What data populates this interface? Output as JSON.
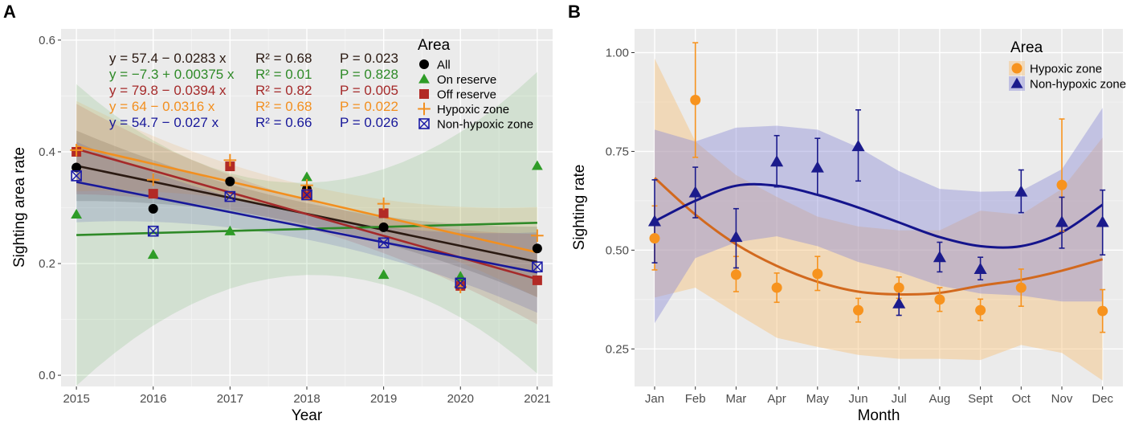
{
  "chart_data": [
    {
      "type": "scatter",
      "panel_label": "A",
      "xlabel": "Year",
      "ylabel": "Sighting area rate",
      "x": [
        2015,
        2016,
        2017,
        2018,
        2019,
        2020,
        2021
      ],
      "xlim": [
        2014.8,
        2021.2
      ],
      "ylim": [
        -0.02,
        0.62
      ],
      "yticks": [
        0.0,
        0.2,
        0.4,
        0.6
      ],
      "ytick_labels": [
        "0.0",
        "0.2",
        "0.4",
        "0.6"
      ],
      "legend_title": "Area",
      "series": [
        {
          "name": "All",
          "marker": "circle",
          "color": "#000000",
          "line_color": "#2b1a12",
          "values": [
            0.372,
            0.298,
            0.347,
            0.333,
            0.265,
            0.162,
            0.227
          ],
          "fit": [
            0.375,
            0.203
          ],
          "band": 0.035,
          "equation": [
            "y = 57.4 − 0.0283 x",
            "R² = 0.68",
            "P = 0.023"
          ]
        },
        {
          "name": "On reserve",
          "marker": "triangle",
          "color": "#2e9c27",
          "line_color": "#2f8a28",
          "values": [
            0.288,
            0.216,
            0.258,
            0.355,
            0.18,
            0.177,
            0.375
          ],
          "fit": [
            0.251,
            0.273
          ],
          "band": 0.15,
          "equation": [
            "y = −7.3 + 0.00375 x",
            "R² = 0.01",
            "P = 0.828"
          ]
        },
        {
          "name": "Off reserve",
          "marker": "square",
          "color": "#b22a25",
          "line_color": "#a52a2a",
          "values": [
            0.4,
            0.325,
            0.374,
            0.325,
            0.29,
            0.16,
            0.17
          ],
          "fit": [
            0.405,
            0.172
          ],
          "band": 0.045,
          "equation": [
            "y = 79.8 − 0.0394 x",
            "R² = 0.82",
            "P = 0.005"
          ]
        },
        {
          "name": "Hypoxic zone",
          "marker": "plus",
          "color": "#f28f1f",
          "line_color": "#f28f1f",
          "values": [
            0.403,
            0.35,
            0.385,
            0.34,
            0.307,
            0.158,
            0.25
          ],
          "fit": [
            0.41,
            0.22
          ],
          "band": 0.045,
          "equation": [
            "y = 64 − 0.0316 x",
            "R² = 0.68",
            "P = 0.022"
          ]
        },
        {
          "name": "Non-hypoxic zone",
          "marker": "boxcross",
          "color": "#1a1aa6",
          "line_color": "#18189a",
          "values": [
            0.357,
            0.258,
            0.32,
            0.323,
            0.237,
            0.165,
            0.194
          ],
          "fit": [
            0.346,
            0.184
          ],
          "band": 0.04,
          "equation": [
            "y = 54.7 − 0.027 x",
            "R² = 0.66",
            "P = 0.026"
          ]
        }
      ]
    },
    {
      "type": "scatter",
      "panel_label": "B",
      "xlabel": "Month",
      "ylabel": "Sighting rate",
      "categories": [
        "Jan",
        "Feb",
        "Mar",
        "Apr",
        "May",
        "Jun",
        "Jul",
        "Aug",
        "Sept",
        "Oct",
        "Nov",
        "Dec"
      ],
      "ylim": [
        0.155,
        1.06
      ],
      "yticks": [
        0.25,
        0.5,
        0.75,
        1.0
      ],
      "ytick_labels": [
        "0.25",
        "0.50",
        "0.75",
        "1.00"
      ],
      "legend_title": "Area",
      "series": [
        {
          "name": "Hypoxic zone",
          "marker": "circle",
          "color": "#f7931e",
          "line_color": "#d2691e",
          "values": [
            0.53,
            0.88,
            0.438,
            0.405,
            0.44,
            0.348,
            0.405,
            0.375,
            0.348,
            0.405,
            0.665,
            0.346
          ],
          "err_low": [
            0.45,
            0.735,
            0.395,
            0.368,
            0.398,
            0.318,
            0.378,
            0.345,
            0.322,
            0.358,
            0.548,
            0.292
          ],
          "err_high": [
            0.612,
            1.025,
            0.484,
            0.442,
            0.484,
            0.378,
            0.432,
            0.405,
            0.376,
            0.452,
            0.832,
            0.4
          ],
          "smooth": [
            0.683,
            0.59,
            0.515,
            0.46,
            0.42,
            0.395,
            0.388,
            0.392,
            0.41,
            0.425,
            0.448,
            0.477
          ],
          "band_low": [
            0.38,
            0.405,
            0.34,
            0.278,
            0.255,
            0.235,
            0.225,
            0.225,
            0.222,
            0.26,
            0.24,
            0.17
          ],
          "band_high": [
            0.985,
            0.775,
            0.69,
            0.635,
            0.585,
            0.56,
            0.55,
            0.55,
            0.6,
            0.59,
            0.655,
            0.785
          ]
        },
        {
          "name": "Non-hypoxic zone",
          "marker": "triangle",
          "color": "#1b1b8c",
          "line_color": "#14148c",
          "values": [
            0.573,
            0.646,
            0.533,
            0.724,
            0.709,
            0.763,
            0.365,
            0.482,
            0.452,
            0.648,
            0.571,
            0.571
          ],
          "err_low": [
            0.468,
            0.582,
            0.455,
            0.66,
            0.64,
            0.675,
            0.335,
            0.445,
            0.425,
            0.595,
            0.505,
            0.488
          ],
          "err_high": [
            0.678,
            0.71,
            0.605,
            0.79,
            0.783,
            0.855,
            0.395,
            0.52,
            0.482,
            0.703,
            0.634,
            0.652
          ],
          "smooth": [
            0.573,
            0.625,
            0.663,
            0.663,
            0.64,
            0.608,
            0.57,
            0.533,
            0.51,
            0.51,
            0.545,
            0.615
          ],
          "band_low": [
            0.315,
            0.48,
            0.52,
            0.535,
            0.51,
            0.47,
            0.445,
            0.41,
            0.39,
            0.385,
            0.37,
            0.37
          ],
          "band_high": [
            0.805,
            0.775,
            0.81,
            0.815,
            0.805,
            0.76,
            0.7,
            0.655,
            0.648,
            0.65,
            0.705,
            0.86
          ]
        }
      ]
    }
  ]
}
